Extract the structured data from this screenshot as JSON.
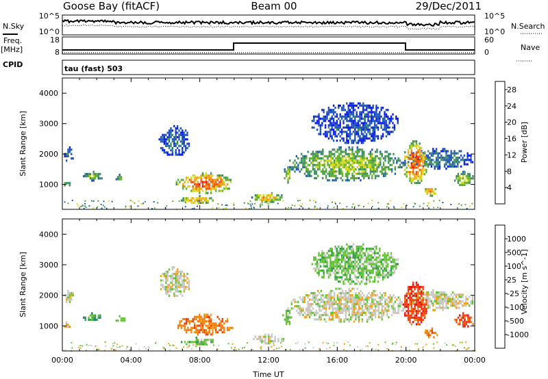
{
  "header": {
    "station": "Goose Bay (fitACF)",
    "beam": "Beam 00",
    "date": "29/Dec/2011"
  },
  "strip": {
    "nsky_label": "N.Sky",
    "nsearch_label": "N.Search",
    "freq_label_line1": "Freq.",
    "freq_label_line2": "[MHz]",
    "nave_label": "Nave",
    "cpid_label": "CPID",
    "noise_ticks_left": [
      "10^5",
      "10^0"
    ],
    "noise_ticks_right": [
      "10^5",
      "10^0"
    ],
    "freq_ticks": [
      "18",
      "8"
    ],
    "nave_ticks": [
      "60",
      "0"
    ],
    "cpid_text": "tau (fast) 503"
  },
  "chart_data": [
    {
      "type": "heatmap",
      "panel": "power",
      "ylabel": "Slant Range [km]",
      "xlabel": "",
      "xlim": [
        0,
        24
      ],
      "ylim": [
        180,
        4500
      ],
      "y_ticks": [
        1000,
        2000,
        3000,
        4000
      ],
      "colorbar": {
        "label": "Power [dB]",
        "ticks": [
          4,
          8,
          12,
          16,
          20,
          24,
          28
        ],
        "range": [
          0,
          30
        ],
        "colors": [
          "#0a1ee8",
          "#1f56b8",
          "#3e8c62",
          "#60b030",
          "#d8d81a",
          "#f5a012",
          "#f05a10",
          "#e80c0c"
        ]
      },
      "echo_regions": [
        {
          "t": [
            0.1,
            0.6
          ],
          "r": [
            1750,
            2250
          ],
          "level": 0.25
        },
        {
          "t": [
            0.0,
            0.4
          ],
          "r": [
            950,
            1150
          ],
          "level": 0.45
        },
        {
          "t": [
            1.2,
            2.3
          ],
          "r": [
            1150,
            1450
          ],
          "level": 0.45
        },
        {
          "t": [
            3.0,
            3.6
          ],
          "r": [
            1150,
            1350
          ],
          "level": 0.4
        },
        {
          "t": [
            5.6,
            7.4
          ],
          "r": [
            1950,
            2950
          ],
          "level": 0.15
        },
        {
          "t": [
            6.6,
            9.9
          ],
          "r": [
            750,
            1400
          ],
          "level": 0.88
        },
        {
          "t": [
            6.8,
            8.8
          ],
          "r": [
            400,
            650
          ],
          "level": 0.72
        },
        {
          "t": [
            11.0,
            12.9
          ],
          "r": [
            450,
            750
          ],
          "level": 0.7
        },
        {
          "t": [
            12.8,
            13.3
          ],
          "r": [
            1050,
            1600
          ],
          "level": 0.55
        },
        {
          "t": [
            13.2,
            19.9
          ],
          "r": [
            1150,
            2250
          ],
          "level": 0.5
        },
        {
          "t": [
            14.5,
            19.5
          ],
          "r": [
            2400,
            3700
          ],
          "level": 0.12
        },
        {
          "t": [
            20.0,
            23.9
          ],
          "r": [
            1550,
            2200
          ],
          "level": 0.25
        },
        {
          "t": [
            19.8,
            21.2
          ],
          "r": [
            1050,
            2450
          ],
          "level": 0.88
        },
        {
          "t": [
            21.0,
            21.8
          ],
          "r": [
            650,
            950
          ],
          "level": 0.75
        },
        {
          "t": [
            22.8,
            23.9
          ],
          "r": [
            950,
            1450
          ],
          "level": 0.55
        }
      ]
    },
    {
      "type": "heatmap",
      "panel": "velocity",
      "ylabel": "Slant Range [km]",
      "xlabel": "Time UT",
      "xlim": [
        0,
        24
      ],
      "ylim": [
        180,
        4500
      ],
      "x_ticks": [
        "00:00",
        "04:00",
        "08:00",
        "12:00",
        "16:00",
        "20:00",
        "00:00"
      ],
      "y_ticks": [
        1000,
        2000,
        3000,
        4000
      ],
      "colorbar": {
        "label": "Velocity [m s^-1]",
        "ticks": [
          "1000",
          "500",
          "100",
          "25",
          "-25",
          "-100",
          "-500",
          "-1000"
        ],
        "colors": [
          "#1414c8",
          "#1f70a8",
          "#2e9a4a",
          "#62c434",
          "#c8c8c0",
          "#f5a012",
          "#f08010",
          "#f04010",
          "#e80c0c"
        ]
      },
      "echo_regions": [
        {
          "t": [
            0.1,
            0.6
          ],
          "r": [
            1750,
            2250
          ],
          "level": 4
        },
        {
          "t": [
            0.0,
            0.4
          ],
          "r": [
            950,
            1150
          ],
          "level": 5
        },
        {
          "t": [
            1.2,
            2.3
          ],
          "r": [
            1150,
            1450
          ],
          "level": 2
        },
        {
          "t": [
            3.0,
            3.6
          ],
          "r": [
            1150,
            1350
          ],
          "level": 3
        },
        {
          "t": [
            5.6,
            7.4
          ],
          "r": [
            1950,
            2950
          ],
          "level": 4
        },
        {
          "t": [
            6.6,
            9.9
          ],
          "r": [
            750,
            1400
          ],
          "level": 6
        },
        {
          "t": [
            6.8,
            8.8
          ],
          "r": [
            400,
            650
          ],
          "level": 3
        },
        {
          "t": [
            11.0,
            12.9
          ],
          "r": [
            450,
            750
          ],
          "level": 4
        },
        {
          "t": [
            12.8,
            13.3
          ],
          "r": [
            1050,
            1600
          ],
          "level": 3
        },
        {
          "t": [
            13.2,
            19.9
          ],
          "r": [
            1150,
            2250
          ],
          "level": 4
        },
        {
          "t": [
            14.5,
            19.5
          ],
          "r": [
            2400,
            3700
          ],
          "level": 3
        },
        {
          "t": [
            20.0,
            23.9
          ],
          "r": [
            1550,
            2200
          ],
          "level": 4
        },
        {
          "t": [
            19.8,
            21.2
          ],
          "r": [
            1050,
            2450
          ],
          "level": 7
        },
        {
          "t": [
            21.0,
            21.8
          ],
          "r": [
            650,
            950
          ],
          "level": 6
        },
        {
          "t": [
            22.8,
            23.9
          ],
          "r": [
            950,
            1450
          ],
          "level": 7
        }
      ]
    }
  ]
}
